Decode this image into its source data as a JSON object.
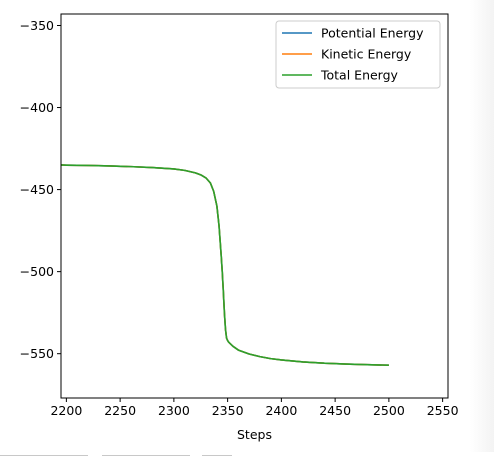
{
  "chart_data": {
    "type": "line",
    "title": "",
    "xlabel": "Steps",
    "ylabel": "",
    "xlim": [
      2195,
      2555
    ],
    "ylim": [
      -577,
      -343
    ],
    "xticks": [
      2200,
      2250,
      2300,
      2350,
      2400,
      2450,
      2500,
      2550
    ],
    "yticks": [
      -350,
      -400,
      -450,
      -500,
      -550
    ],
    "grid": false,
    "legend_position": "upper right",
    "x": [
      2195,
      2200,
      2220,
      2240,
      2260,
      2280,
      2300,
      2310,
      2320,
      2325,
      2330,
      2334,
      2337,
      2340,
      2342,
      2344,
      2345,
      2346,
      2347,
      2348,
      2349,
      2350,
      2351,
      2355,
      2360,
      2370,
      2380,
      2390,
      2400,
      2420,
      2440,
      2460,
      2480,
      2500
    ],
    "series": [
      {
        "name": "Potential Energy",
        "color": "#1f77b4",
        "values": [
          -435.0,
          -435.1,
          -435.3,
          -435.6,
          -436.0,
          -436.6,
          -437.4,
          -438.3,
          -439.8,
          -441.0,
          -443.0,
          -446.0,
          -451.0,
          -460.0,
          -472.0,
          -490.0,
          -500.0,
          -512.0,
          -525.0,
          -535.0,
          -540.5,
          -542.0,
          -543.0,
          -545.5,
          -547.8,
          -550.2,
          -551.8,
          -553.0,
          -553.8,
          -555.0,
          -555.8,
          -556.3,
          -556.7,
          -557.0
        ]
      },
      {
        "name": "Kinetic Energy",
        "color": "#ff7f0e",
        "values": [
          -435.0,
          -435.1,
          -435.3,
          -435.6,
          -436.0,
          -436.6,
          -437.4,
          -438.3,
          -439.8,
          -441.0,
          -443.0,
          -446.0,
          -451.0,
          -460.0,
          -472.0,
          -490.0,
          -500.0,
          -512.0,
          -525.0,
          -535.0,
          -540.5,
          -542.0,
          -543.0,
          -545.5,
          -547.8,
          -550.2,
          -551.8,
          -553.0,
          -553.8,
          -555.0,
          -555.8,
          -556.3,
          -556.7,
          -557.0
        ]
      },
      {
        "name": "Total Energy",
        "color": "#2ca02c",
        "values": [
          -435.0,
          -435.1,
          -435.3,
          -435.6,
          -436.0,
          -436.6,
          -437.4,
          -438.3,
          -439.8,
          -441.0,
          -443.0,
          -446.0,
          -451.0,
          -460.0,
          -472.0,
          -490.0,
          -500.0,
          -512.0,
          -525.0,
          -535.0,
          -540.5,
          -542.0,
          -543.0,
          -545.5,
          -547.8,
          -550.2,
          -551.8,
          -553.0,
          -553.8,
          -555.0,
          -555.8,
          -556.3,
          -556.7,
          -557.0
        ]
      }
    ]
  }
}
